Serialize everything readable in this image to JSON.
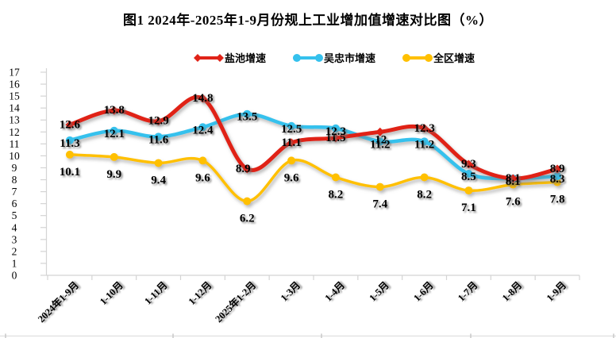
{
  "title": "图1 2024年-2025年1-9月份规上工业增加值增速对比图（%）",
  "chart_data": {
    "type": "line",
    "title": "图1 2024年-2025年1-9月份规上工业增加值增速对比图（%）",
    "categories": [
      "2024年1-9月",
      "1-10月",
      "1-11月",
      "1-12月",
      "2025年1-2月",
      "1-3月",
      "1-4月",
      "1-5月",
      "1-6月",
      "1-7月",
      "1-8月",
      "1-9月"
    ],
    "series": [
      {
        "name": "盐池增速",
        "key": "yanchi",
        "color": "#e02318",
        "marker": "diamond",
        "values": [
          12.6,
          13.8,
          12.9,
          14.8,
          8.9,
          11.1,
          11.5,
          12,
          12.3,
          9.3,
          8.1,
          8.9
        ]
      },
      {
        "name": "吴忠市增速",
        "key": "wuzhongshi",
        "color": "#35c1ed",
        "marker": "circle",
        "values": [
          11.3,
          12.1,
          11.6,
          12.4,
          13.5,
          12.5,
          12.3,
          11.2,
          11.2,
          8.5,
          8.1,
          8.3
        ]
      },
      {
        "name": "全区增速",
        "key": "quanqu",
        "color": "#ffc000",
        "marker": "circle",
        "values": [
          10.1,
          9.9,
          9.4,
          9.6,
          6.2,
          9.6,
          8.2,
          7.4,
          8.2,
          7.1,
          7.6,
          7.8
        ]
      }
    ],
    "xlabel": "",
    "ylabel": "",
    "ylim": [
      0,
      17
    ],
    "ytick_step": 1,
    "grid": false,
    "legend_position": "top",
    "smooth_lines": true,
    "data_labels": true,
    "axis_color": "#d4d4d4",
    "text_color": "#000000",
    "background": "#ffffff"
  }
}
